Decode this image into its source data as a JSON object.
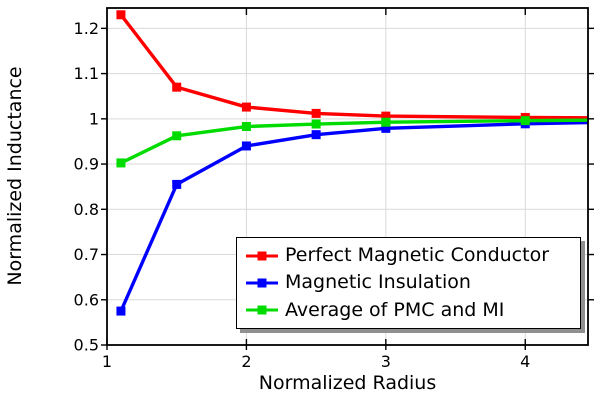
{
  "chart_data": {
    "type": "line",
    "title": "",
    "xlabel": "Normalized Radius",
    "ylabel": "Normalized Inductance",
    "xlim": [
      1,
      4.45
    ],
    "ylim": [
      0.5,
      1.245
    ],
    "xticks": [
      1,
      2,
      3,
      4
    ],
    "xtick_labels": [
      "1",
      "2",
      "3",
      "4"
    ],
    "yticks": [
      0.5,
      0.6,
      0.7,
      0.8,
      0.9,
      1.0,
      1.1,
      1.2
    ],
    "ytick_labels": [
      "0.5",
      "0.6",
      "0.7",
      "0.8",
      "0.9",
      "1",
      "1.1",
      "1.2"
    ],
    "grid": true,
    "legend_position": "inside-bottom-right",
    "marker": "square",
    "x": [
      1.1,
      1.5,
      2,
      2.5,
      3,
      4,
      4.5
    ],
    "series": [
      {
        "name": "Perfect Magnetic Conductor",
        "color": "#ff0000",
        "values": [
          1.23,
          1.07,
          1.026,
          1.012,
          1.006,
          1.003,
          1.002
        ]
      },
      {
        "name": "Magnetic Insulation",
        "color": "#0000ff",
        "values": [
          0.575,
          0.855,
          0.94,
          0.965,
          0.979,
          0.989,
          0.992
        ]
      },
      {
        "name": "Average of PMC and MI",
        "color": "#00dc00",
        "values": [
          0.9025,
          0.9625,
          0.983,
          0.9885,
          0.9925,
          0.996,
          0.997
        ]
      }
    ]
  },
  "colors": {
    "background": "#ffffff",
    "axis": "#000000",
    "grid": "#d9d9d9",
    "tick_text": "#000000",
    "legend_border": "#000000",
    "legend_shadow": "#909090"
  }
}
